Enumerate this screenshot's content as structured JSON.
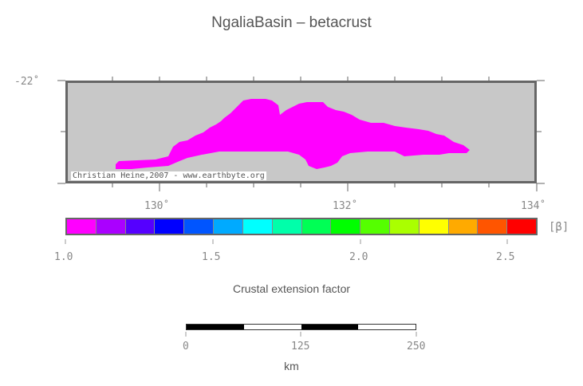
{
  "title": "NgaliaBasin – betacrust",
  "map": {
    "lat_label": "-22˚",
    "lon_labels": [
      "130˚",
      "132˚",
      "134˚"
    ],
    "credit": "Christian Heine,2007 - www.earthbyte.org",
    "background_color": "#c8c8c8",
    "fill_color": "#ff00ff"
  },
  "colorbar": {
    "unit": "[β]",
    "tick_labels": [
      "1.0",
      "1.5",
      "2.0",
      "2.5"
    ],
    "colors": [
      "#ff00ff",
      "#aa00ff",
      "#5500ff",
      "#0000ff",
      "#0055ff",
      "#00aaff",
      "#00ffff",
      "#00ffaa",
      "#00ff55",
      "#00ff00",
      "#55ff00",
      "#aaff00",
      "#ffff00",
      "#ffaa00",
      "#ff5500",
      "#ff0000"
    ],
    "title": "Crustal extension factor"
  },
  "scale": {
    "labels": [
      "0",
      "125",
      "250"
    ],
    "unit": "km"
  }
}
